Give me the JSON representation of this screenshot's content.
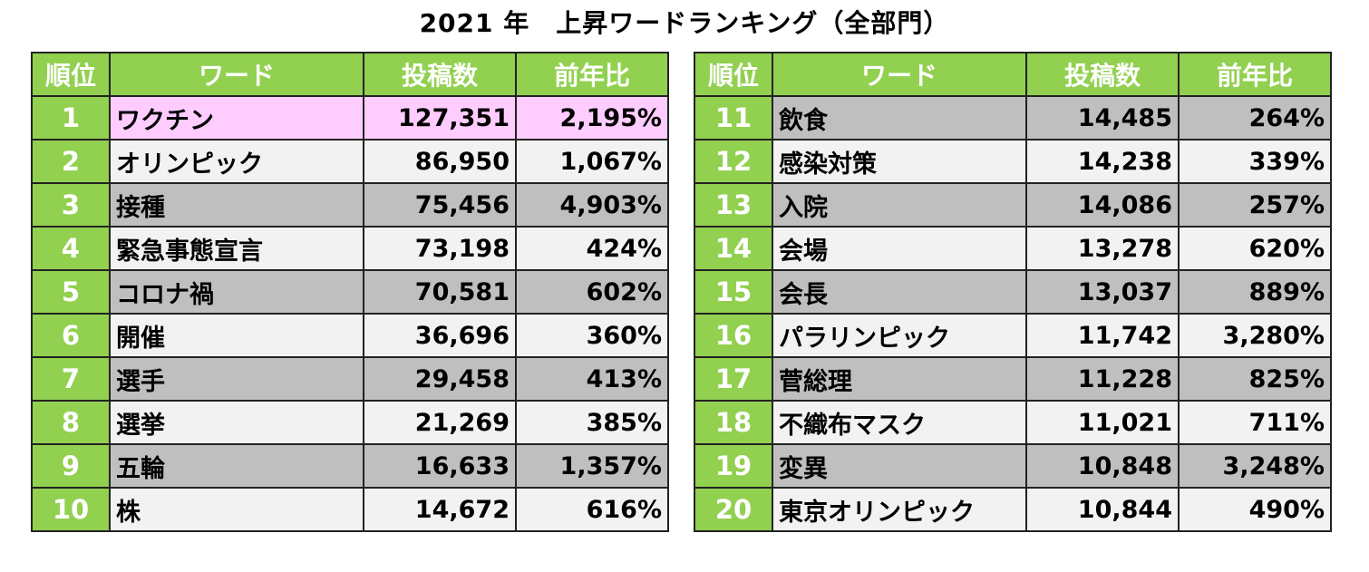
{
  "title": "2021 年　上昇ワードランキング（全部門）",
  "headers": {
    "rank": "順位",
    "word": "ワード",
    "posts": "投稿数",
    "yoy": "前年比"
  },
  "colors": {
    "header_bg": "#92d050",
    "row_dark": "#bfbfbf",
    "row_light": "#f2f2f2",
    "highlight": "#ffccff"
  },
  "left_rows": [
    {
      "rank": "1",
      "word": "ワクチン",
      "posts": "127,351",
      "yoy": "2,195%"
    },
    {
      "rank": "2",
      "word": "オリンピック",
      "posts": "86,950",
      "yoy": "1,067%"
    },
    {
      "rank": "3",
      "word": "接種",
      "posts": "75,456",
      "yoy": "4,903%"
    },
    {
      "rank": "4",
      "word": "緊急事態宣言",
      "posts": "73,198",
      "yoy": "424%"
    },
    {
      "rank": "5",
      "word": "コロナ禍",
      "posts": "70,581",
      "yoy": "602%"
    },
    {
      "rank": "6",
      "word": "開催",
      "posts": "36,696",
      "yoy": "360%"
    },
    {
      "rank": "7",
      "word": "選手",
      "posts": "29,458",
      "yoy": "413%"
    },
    {
      "rank": "8",
      "word": "選挙",
      "posts": "21,269",
      "yoy": "385%"
    },
    {
      "rank": "9",
      "word": "五輪",
      "posts": "16,633",
      "yoy": "1,357%"
    },
    {
      "rank": "10",
      "word": "株",
      "posts": "14,672",
      "yoy": "616%"
    }
  ],
  "right_rows": [
    {
      "rank": "11",
      "word": "飲食",
      "posts": "14,485",
      "yoy": "264%"
    },
    {
      "rank": "12",
      "word": "感染対策",
      "posts": "14,238",
      "yoy": "339%"
    },
    {
      "rank": "13",
      "word": "入院",
      "posts": "14,086",
      "yoy": "257%"
    },
    {
      "rank": "14",
      "word": "会場",
      "posts": "13,278",
      "yoy": "620%"
    },
    {
      "rank": "15",
      "word": "会長",
      "posts": "13,037",
      "yoy": "889%"
    },
    {
      "rank": "16",
      "word": "パラリンピック",
      "posts": "11,742",
      "yoy": "3,280%"
    },
    {
      "rank": "17",
      "word": "菅総理",
      "posts": "11,228",
      "yoy": "825%"
    },
    {
      "rank": "18",
      "word": "不織布マスク",
      "posts": "11,021",
      "yoy": "711%"
    },
    {
      "rank": "19",
      "word": "変異",
      "posts": "10,848",
      "yoy": "3,248%"
    },
    {
      "rank": "20",
      "word": "東京オリンピック",
      "posts": "10,844",
      "yoy": "490%"
    }
  ]
}
